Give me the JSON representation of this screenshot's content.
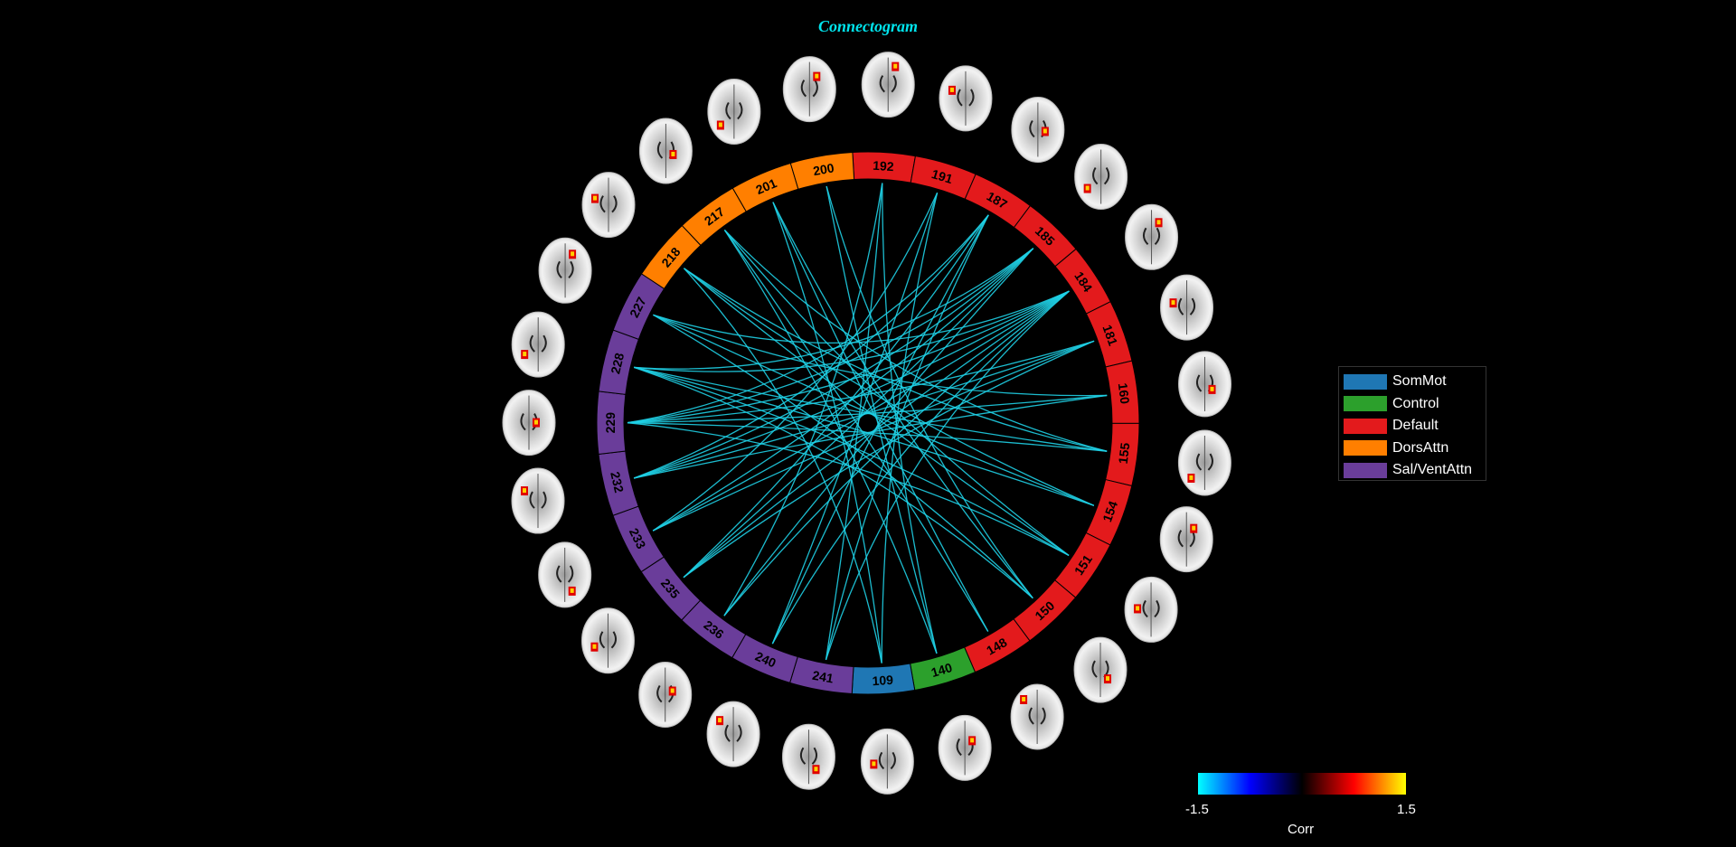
{
  "title": "Connectogram",
  "legend": [
    {
      "label": "SomMot",
      "color": "#1f77b4"
    },
    {
      "label": "Control",
      "color": "#2ca02c"
    },
    {
      "label": "Default",
      "color": "#e31a1c"
    },
    {
      "label": "DorsAttn",
      "color": "#ff7f00"
    },
    {
      "label": "Sal/VentAttn",
      "color": "#6a3d9a"
    }
  ],
  "nodes": [
    {
      "id": "192",
      "network": "Default"
    },
    {
      "id": "191",
      "network": "Default"
    },
    {
      "id": "187",
      "network": "Default"
    },
    {
      "id": "185",
      "network": "Default"
    },
    {
      "id": "184",
      "network": "Default"
    },
    {
      "id": "181",
      "network": "Default"
    },
    {
      "id": "160",
      "network": "Default"
    },
    {
      "id": "155",
      "network": "Default"
    },
    {
      "id": "154",
      "network": "Default"
    },
    {
      "id": "151",
      "network": "Default"
    },
    {
      "id": "150",
      "network": "Default"
    },
    {
      "id": "148",
      "network": "Default"
    },
    {
      "id": "140",
      "network": "Control"
    },
    {
      "id": "109",
      "network": "SomMot"
    },
    {
      "id": "241",
      "network": "Sal/VentAttn"
    },
    {
      "id": "240",
      "network": "Sal/VentAttn"
    },
    {
      "id": "236",
      "network": "Sal/VentAttn"
    },
    {
      "id": "235",
      "network": "Sal/VentAttn"
    },
    {
      "id": "233",
      "network": "Sal/VentAttn"
    },
    {
      "id": "232",
      "network": "Sal/VentAttn"
    },
    {
      "id": "229",
      "network": "Sal/VentAttn"
    },
    {
      "id": "228",
      "network": "Sal/VentAttn"
    },
    {
      "id": "227",
      "network": "Sal/VentAttn"
    },
    {
      "id": "218",
      "network": "DorsAttn"
    },
    {
      "id": "217",
      "network": "DorsAttn"
    },
    {
      "id": "201",
      "network": "DorsAttn"
    },
    {
      "id": "200",
      "network": "DorsAttn"
    }
  ],
  "edges": [
    [
      "192",
      "140"
    ],
    [
      "192",
      "236"
    ],
    [
      "191",
      "109"
    ],
    [
      "191",
      "233"
    ],
    [
      "187",
      "241"
    ],
    [
      "187",
      "235"
    ],
    [
      "187",
      "232"
    ],
    [
      "187",
      "229"
    ],
    [
      "187",
      "240"
    ],
    [
      "185",
      "229"
    ],
    [
      "185",
      "232"
    ],
    [
      "185",
      "228"
    ],
    [
      "185",
      "233"
    ],
    [
      "185",
      "236"
    ],
    [
      "185",
      "235"
    ],
    [
      "184",
      "227"
    ],
    [
      "184",
      "228"
    ],
    [
      "184",
      "229"
    ],
    [
      "184",
      "232"
    ],
    [
      "184",
      "233"
    ],
    [
      "184",
      "235"
    ],
    [
      "184",
      "236"
    ],
    [
      "184",
      "240"
    ],
    [
      "184",
      "241"
    ],
    [
      "181",
      "229"
    ],
    [
      "181",
      "232"
    ],
    [
      "181",
      "233"
    ],
    [
      "181",
      "235"
    ],
    [
      "160",
      "227"
    ],
    [
      "160",
      "229"
    ],
    [
      "160",
      "232"
    ],
    [
      "155",
      "228"
    ],
    [
      "155",
      "229"
    ],
    [
      "155",
      "218"
    ],
    [
      "155",
      "217"
    ],
    [
      "154",
      "228"
    ],
    [
      "154",
      "227"
    ],
    [
      "154",
      "218"
    ],
    [
      "151",
      "229"
    ],
    [
      "151",
      "228"
    ],
    [
      "151",
      "218"
    ],
    [
      "151",
      "217"
    ],
    [
      "150",
      "228"
    ],
    [
      "150",
      "227"
    ],
    [
      "150",
      "201"
    ],
    [
      "150",
      "200"
    ],
    [
      "148",
      "217"
    ],
    [
      "148",
      "201"
    ],
    [
      "140",
      "217"
    ],
    [
      "140",
      "200"
    ],
    [
      "109",
      "218"
    ],
    [
      "109",
      "201"
    ],
    [
      "241",
      "192"
    ],
    [
      "240",
      "191"
    ]
  ],
  "colorbar": {
    "min": "-1.5",
    "max": "1.5",
    "label": "Corr"
  }
}
